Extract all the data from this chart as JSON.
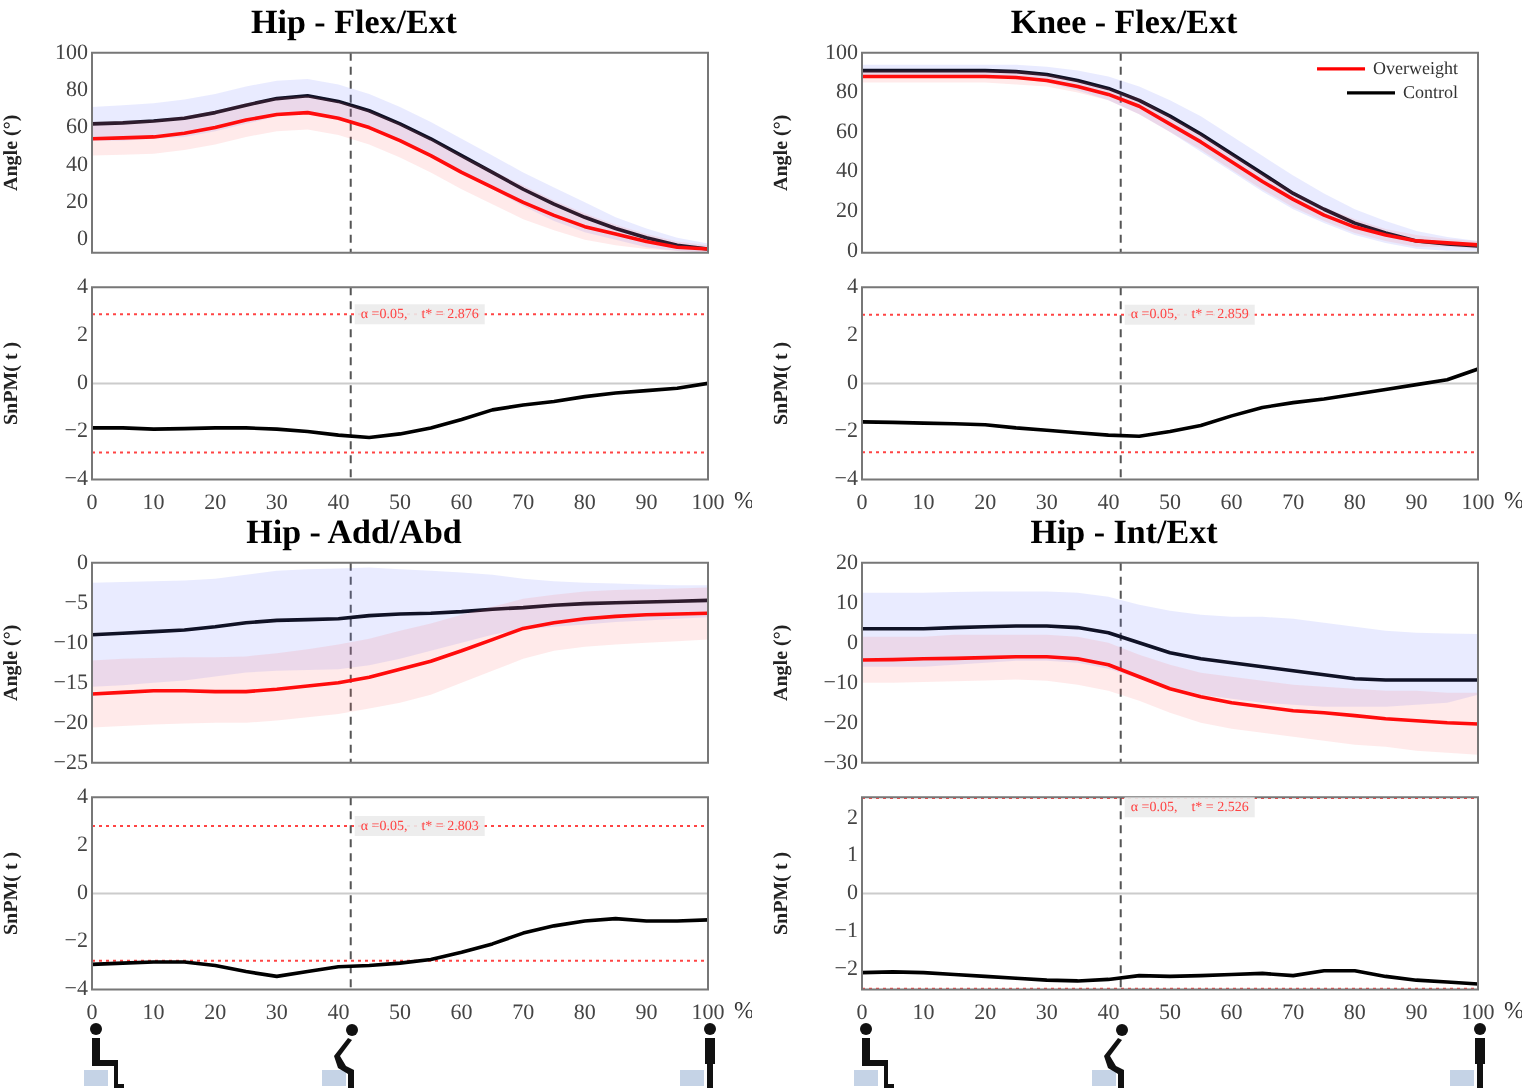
{
  "chart_data": [
    {
      "type": "line",
      "title": "Hip - Flex/Ext",
      "ylabel": "Angle (°)",
      "x": [
        0,
        5,
        10,
        15,
        20,
        25,
        30,
        35,
        40,
        45,
        50,
        55,
        60,
        65,
        70,
        75,
        80,
        85,
        90,
        95,
        100
      ],
      "xlim": [
        0,
        100
      ],
      "xticks": [
        0,
        10,
        20,
        30,
        40,
        50,
        60,
        70,
        80,
        90,
        100
      ],
      "ylim": [
        -7,
        100
      ],
      "yticks": [
        0,
        20,
        40,
        60,
        80,
        100
      ],
      "tick_labels": "y",
      "series": [
        {
          "color": "#ff0000",
          "values": [
            54,
            54.5,
            55,
            57,
            60,
            64,
            67,
            68,
            65,
            60,
            53,
            45,
            36,
            28,
            20,
            13,
            7,
            3,
            -1,
            -4,
            -5
          ],
          "upper": [
            63,
            63.5,
            64,
            66,
            69,
            73,
            76,
            77,
            74,
            69,
            62,
            54,
            45,
            37,
            29,
            21,
            14,
            8,
            3,
            -1,
            -3
          ],
          "lower": [
            45,
            45.5,
            46,
            48,
            51,
            55,
            58,
            59,
            56,
            51,
            44,
            36,
            27,
            19,
            11,
            5,
            0,
            -3,
            -5,
            -6,
            -7
          ]
        },
        {
          "color": "#000000",
          "values": [
            62,
            62.5,
            63.5,
            65,
            68,
            72,
            75.5,
            77,
            74,
            69,
            62,
            54,
            45,
            36,
            27,
            19,
            12,
            6,
            1,
            -3,
            -5
          ],
          "upper": [
            71,
            72,
            73,
            75,
            78,
            82,
            85,
            86,
            83,
            78,
            71,
            63,
            54,
            45,
            36,
            28,
            20,
            12,
            6,
            1,
            -2
          ],
          "lower": [
            53,
            53,
            54,
            55,
            58,
            62,
            66,
            68,
            65,
            60,
            53,
            45,
            36,
            27,
            18,
            10,
            4,
            0,
            -4,
            -6,
            -7
          ]
        }
      ],
      "ref_lines": [
        {
          "axis": "x",
          "value": 42,
          "color": "#555555",
          "line_style": "dashed"
        }
      ]
    },
    {
      "type": "line",
      "title": "Knee - Flex/Ext",
      "ylabel": "Angle (°)",
      "x": [
        0,
        5,
        10,
        15,
        20,
        25,
        30,
        35,
        40,
        45,
        50,
        55,
        60,
        65,
        70,
        75,
        80,
        85,
        90,
        95,
        100
      ],
      "xlim": [
        0,
        100
      ],
      "xticks": [
        0,
        10,
        20,
        30,
        40,
        50,
        60,
        70,
        80,
        90,
        100
      ],
      "ylim": [
        -1,
        100
      ],
      "yticks": [
        0,
        20,
        40,
        60,
        80,
        100
      ],
      "tick_labels": "y",
      "legend": "top right",
      "series": [
        {
          "name": "Overweight",
          "color": "#ff0000",
          "values": [
            88,
            88,
            88,
            88,
            88,
            87.5,
            86,
            83,
            79,
            73,
            64,
            55,
            45,
            35,
            26,
            18,
            12,
            8,
            5,
            4,
            3
          ],
          "upper": [
            91,
            91,
            91,
            91,
            91,
            91,
            89,
            86,
            82,
            77,
            68,
            59,
            49,
            39,
            30,
            22,
            16,
            11,
            8,
            6,
            5
          ],
          "lower": [
            85,
            85,
            85,
            85,
            85,
            84,
            83,
            80,
            76,
            69,
            60,
            51,
            41,
            31,
            22,
            15,
            9,
            5,
            2,
            2,
            1
          ]
        },
        {
          "name": "Control",
          "color": "#000000",
          "values": [
            91,
            91,
            91,
            91,
            91,
            90.5,
            89,
            86,
            82,
            76,
            68,
            59,
            49,
            39,
            29,
            21,
            14,
            9,
            5,
            3.5,
            2.5
          ],
          "upper": [
            94,
            94,
            94,
            94,
            94,
            94,
            93,
            91,
            88,
            83,
            76,
            68,
            58,
            48,
            38,
            29,
            21,
            15,
            10,
            7,
            5
          ],
          "lower": [
            88,
            88,
            88,
            88,
            88,
            87,
            85,
            81,
            76,
            69,
            60,
            50,
            40,
            30,
            21,
            14,
            8,
            4,
            1,
            0,
            0
          ]
        }
      ],
      "ref_lines": [
        {
          "axis": "x",
          "value": 42,
          "color": "#555555",
          "line_style": "dashed"
        }
      ]
    },
    {
      "type": "line",
      "ylabel": "SnPM( t )",
      "xlabel": "%",
      "x": [
        0,
        5,
        10,
        15,
        20,
        25,
        30,
        35,
        40,
        45,
        50,
        55,
        60,
        65,
        70,
        75,
        80,
        85,
        90,
        95,
        100
      ],
      "xlim": [
        0,
        100
      ],
      "xticks": [
        0,
        10,
        20,
        30,
        40,
        50,
        60,
        70,
        80,
        90,
        100
      ],
      "ylim": [
        -4,
        4
      ],
      "yticks": [
        -4,
        -2,
        0,
        2,
        4
      ],
      "series": [
        {
          "color": "#000000",
          "values": [
            -1.85,
            -1.85,
            -1.9,
            -1.88,
            -1.85,
            -1.85,
            -1.9,
            -2.0,
            -2.15,
            -2.25,
            -2.1,
            -1.85,
            -1.5,
            -1.1,
            -0.9,
            -0.75,
            -0.55,
            -0.4,
            -0.3,
            -0.2,
            0
          ]
        }
      ],
      "ref_lines": [
        {
          "axis": "y",
          "value": 0,
          "color": "#cccccc",
          "line_style": "solid"
        },
        {
          "axis": "y",
          "value": 2.876,
          "color": "#ff4444",
          "line_style": "dotted",
          "label": "α =0.05,    t* = 2.876"
        },
        {
          "axis": "y",
          "value": -2.876,
          "color": "#ff4444",
          "line_style": "dotted"
        },
        {
          "axis": "x",
          "value": 42,
          "color": "#555555",
          "line_style": "dashed"
        }
      ]
    },
    {
      "type": "line",
      "ylabel": "SnPM( t )",
      "xlabel": "%",
      "x": [
        0,
        5,
        10,
        15,
        20,
        25,
        30,
        35,
        40,
        45,
        50,
        55,
        60,
        65,
        70,
        75,
        80,
        85,
        90,
        95,
        100
      ],
      "xlim": [
        0,
        100
      ],
      "xticks": [
        0,
        10,
        20,
        30,
        40,
        50,
        60,
        70,
        80,
        90,
        100
      ],
      "ylim": [
        -4,
        4
      ],
      "yticks": [
        -4,
        -2,
        0,
        2,
        4
      ],
      "series": [
        {
          "color": "#000000",
          "values": [
            -1.6,
            -1.62,
            -1.65,
            -1.68,
            -1.72,
            -1.85,
            -1.95,
            -2.05,
            -2.15,
            -2.2,
            -2.0,
            -1.75,
            -1.35,
            -1.0,
            -0.8,
            -0.65,
            -0.45,
            -0.25,
            -0.05,
            0.15,
            0.6
          ]
        }
      ],
      "ref_lines": [
        {
          "axis": "y",
          "value": 0,
          "color": "#cccccc",
          "line_style": "solid"
        },
        {
          "axis": "y",
          "value": 2.859,
          "color": "#ff4444",
          "line_style": "dotted",
          "label": "α =0.05,    t* = 2.859"
        },
        {
          "axis": "y",
          "value": -2.859,
          "color": "#ff4444",
          "line_style": "dotted"
        },
        {
          "axis": "x",
          "value": 42,
          "color": "#555555",
          "line_style": "dashed"
        }
      ]
    },
    {
      "type": "line",
      "title": "Hip - Add/Abd",
      "ylabel": "Angle (°)",
      "x": [
        0,
        5,
        10,
        15,
        20,
        25,
        30,
        35,
        40,
        45,
        50,
        55,
        60,
        65,
        70,
        75,
        80,
        85,
        90,
        95,
        100
      ],
      "xlim": [
        0,
        100
      ],
      "xticks": [
        0,
        10,
        20,
        30,
        40,
        50,
        60,
        70,
        80,
        90,
        100
      ],
      "ylim": [
        -25,
        0
      ],
      "yticks": [
        -25,
        -20,
        -15,
        -10,
        -5,
        0
      ],
      "tick_labels": "y",
      "series": [
        {
          "color": "#ff0000",
          "values": [
            -16.4,
            -16.2,
            -16,
            -16,
            -16.1,
            -16.1,
            -15.8,
            -15.4,
            -15,
            -14.3,
            -13.3,
            -12.3,
            -11,
            -9.6,
            -8.2,
            -7.5,
            -7,
            -6.7,
            -6.5,
            -6.4,
            -6.3
          ],
          "upper": [
            -12.2,
            -12,
            -11.9,
            -11.8,
            -11.8,
            -11.7,
            -11.3,
            -10.8,
            -10.2,
            -9.5,
            -8.5,
            -7.6,
            -6.5,
            -5.5,
            -4.5,
            -4,
            -3.6,
            -3.4,
            -3.3,
            -3.2,
            -3.1
          ],
          "lower": [
            -20.6,
            -20.4,
            -20.2,
            -20.1,
            -20,
            -20,
            -19.7,
            -19.3,
            -18.9,
            -18.2,
            -17.5,
            -16.5,
            -15,
            -13.5,
            -12,
            -11,
            -10.5,
            -10.2,
            -10,
            -9.8,
            -9.6
          ]
        },
        {
          "color": "#000000",
          "values": [
            -9,
            -8.8,
            -8.6,
            -8.4,
            -8,
            -7.5,
            -7.2,
            -7.1,
            -7,
            -6.6,
            -6.4,
            -6.3,
            -6.1,
            -5.8,
            -5.6,
            -5.3,
            -5.1,
            -5,
            -4.9,
            -4.8,
            -4.7
          ],
          "upper": [
            -2.5,
            -2.4,
            -2.3,
            -2.2,
            -2,
            -1.5,
            -1,
            -0.8,
            -0.7,
            -0.6,
            -0.8,
            -1,
            -1.2,
            -1.5,
            -2,
            -2.3,
            -2.5,
            -2.6,
            -2.7,
            -2.8,
            -2.8
          ],
          "lower": [
            -15.5,
            -15.3,
            -15,
            -14.7,
            -14.2,
            -13.7,
            -13.5,
            -13.4,
            -13.3,
            -12.8,
            -12,
            -11,
            -10,
            -9,
            -8.3,
            -8,
            -7.7,
            -7.4,
            -7.2,
            -7,
            -6.8
          ]
        }
      ],
      "ref_lines": [
        {
          "axis": "x",
          "value": 42,
          "color": "#555555",
          "line_style": "dashed"
        }
      ]
    },
    {
      "type": "line",
      "title": "Hip - Int/Ext",
      "ylabel": "Angle (°)",
      "x": [
        0,
        5,
        10,
        15,
        20,
        25,
        30,
        35,
        40,
        45,
        50,
        55,
        60,
        65,
        70,
        75,
        80,
        85,
        90,
        95,
        100
      ],
      "xlim": [
        0,
        100
      ],
      "xticks": [
        0,
        10,
        20,
        30,
        40,
        50,
        60,
        70,
        80,
        90,
        100
      ],
      "ylim": [
        -30,
        20
      ],
      "yticks": [
        -30,
        -20,
        -10,
        0,
        10,
        20
      ],
      "tick_labels": "y",
      "series": [
        {
          "color": "#ff0000",
          "values": [
            -4.3,
            -4.2,
            -4,
            -3.9,
            -3.7,
            -3.5,
            -3.5,
            -4,
            -5.5,
            -8.5,
            -11.5,
            -13.5,
            -15,
            -16,
            -17,
            -17.5,
            -18.2,
            -19,
            -19.5,
            -20,
            -20.3
          ],
          "upper": [
            1.5,
            1.5,
            1.5,
            2,
            2,
            2,
            2,
            1.5,
            0,
            -3,
            -5.5,
            -7.5,
            -8.5,
            -9.5,
            -10.5,
            -11,
            -11.5,
            -12,
            -12,
            -12.5,
            -12.5
          ],
          "lower": [
            -10,
            -10,
            -9.8,
            -9.6,
            -9.4,
            -9.2,
            -9.5,
            -10.5,
            -12,
            -14.5,
            -17.5,
            -20,
            -21.5,
            -22.5,
            -23.5,
            -24.5,
            -25.5,
            -26,
            -27,
            -27.5,
            -28
          ]
        },
        {
          "color": "#000000",
          "values": [
            3.5,
            3.5,
            3.5,
            3.8,
            4,
            4.2,
            4.2,
            3.8,
            2.5,
            0,
            -2.5,
            -4,
            -5,
            -6,
            -7,
            -8,
            -9,
            -9.3,
            -9.3,
            -9.3,
            -9.3
          ],
          "upper": [
            12.5,
            12.5,
            12.5,
            12.7,
            12.8,
            12.8,
            12.8,
            12.5,
            11.5,
            9.5,
            8,
            7,
            6.5,
            6.5,
            6,
            5,
            4,
            3,
            2.5,
            2.3,
            2.2
          ],
          "lower": [
            -6,
            -6,
            -6,
            -5.5,
            -5,
            -4.5,
            -4.5,
            -5,
            -6.5,
            -9,
            -11,
            -13,
            -14,
            -15,
            -15.5,
            -16,
            -16,
            -16,
            -15.5,
            -15,
            -13
          ]
        }
      ],
      "ref_lines": [
        {
          "axis": "x",
          "value": 42,
          "color": "#555555",
          "line_style": "dashed"
        }
      ]
    },
    {
      "type": "line",
      "ylabel": "SnPM( t )",
      "xlabel": "%",
      "x": [
        0,
        5,
        10,
        15,
        20,
        25,
        30,
        35,
        40,
        45,
        50,
        55,
        60,
        65,
        70,
        75,
        80,
        85,
        90,
        95,
        100
      ],
      "xlim": [
        0,
        100
      ],
      "xticks": [
        0,
        10,
        20,
        30,
        40,
        50,
        60,
        70,
        80,
        90,
        100
      ],
      "ylim": [
        -4,
        4
      ],
      "yticks": [
        -4,
        -2,
        0,
        2,
        4
      ],
      "series": [
        {
          "color": "#000000",
          "values": [
            -2.95,
            -2.9,
            -2.85,
            -2.85,
            -3.0,
            -3.25,
            -3.45,
            -3.25,
            -3.05,
            -3.0,
            -2.9,
            -2.75,
            -2.45,
            -2.1,
            -1.65,
            -1.35,
            -1.15,
            -1.05,
            -1.15,
            -1.15,
            -1.1
          ]
        }
      ],
      "ref_lines": [
        {
          "axis": "y",
          "value": 0,
          "color": "#cccccc",
          "line_style": "solid"
        },
        {
          "axis": "y",
          "value": 2.803,
          "color": "#ff4444",
          "line_style": "dotted",
          "label": "α =0.05,    t* = 2.803"
        },
        {
          "axis": "y",
          "value": -2.803,
          "color": "#ff4444",
          "line_style": "dotted"
        },
        {
          "axis": "x",
          "value": 42,
          "color": "#555555",
          "line_style": "dashed"
        }
      ]
    },
    {
      "type": "line",
      "ylabel": "SnPM( t )",
      "xlabel": "%",
      "x": [
        0,
        5,
        10,
        15,
        20,
        25,
        30,
        35,
        40,
        45,
        50,
        55,
        60,
        65,
        70,
        75,
        80,
        85,
        90,
        95,
        100
      ],
      "xlim": [
        0,
        100
      ],
      "xticks": [
        0,
        10,
        20,
        30,
        40,
        50,
        60,
        70,
        80,
        90,
        100
      ],
      "ylim": [
        -2.55,
        2.55
      ],
      "yticks": [
        -2,
        -1,
        0,
        1,
        2
      ],
      "series": [
        {
          "color": "#000000",
          "values": [
            -2.1,
            -2.08,
            -2.1,
            -2.15,
            -2.2,
            -2.25,
            -2.3,
            -2.32,
            -2.28,
            -2.18,
            -2.2,
            -2.18,
            -2.15,
            -2.12,
            -2.18,
            -2.05,
            -2.05,
            -2.2,
            -2.3,
            -2.35,
            -2.4
          ]
        }
      ],
      "ref_lines": [
        {
          "axis": "y",
          "value": 0,
          "color": "#cccccc",
          "line_style": "solid"
        },
        {
          "axis": "y",
          "value": 2.526,
          "color": "#ff4444",
          "line_style": "dotted",
          "label": "α =0.05,    t* = 2.526"
        },
        {
          "axis": "y",
          "value": -2.526,
          "color": "#ff4444",
          "line_style": "dotted"
        },
        {
          "axis": "x",
          "value": 42,
          "color": "#555555",
          "line_style": "dashed"
        }
      ]
    }
  ]
}
